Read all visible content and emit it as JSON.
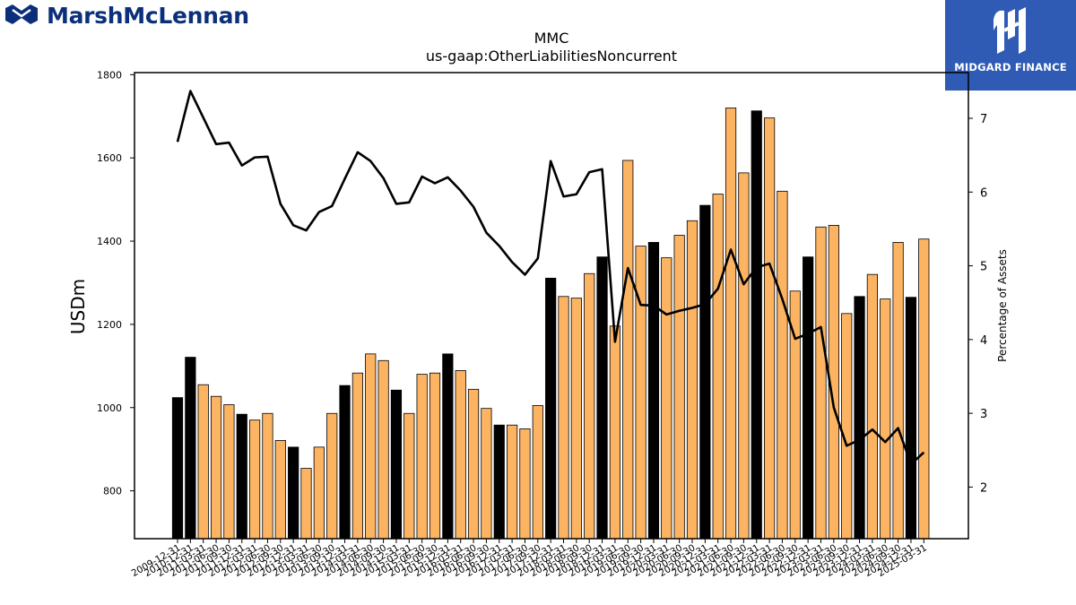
{
  "branding": {
    "left_logo": "MarshMcLennan",
    "right_logo": "MIDGARD FINANCE"
  },
  "chart_data": {
    "type": "bar",
    "title": "MMC",
    "subtitle": "us-gaap:OtherLiabilitiesNoncurrent",
    "ylabel": "USDm",
    "y2label": "Percentage of Assets",
    "ylim": [
      685,
      1805
    ],
    "y2lim": [
      1.3,
      7.62
    ],
    "yticks": [
      800,
      1000,
      1200,
      1400,
      1600,
      1800
    ],
    "y2ticks": [
      2,
      3,
      4,
      5,
      6,
      7
    ],
    "bar_colors": {
      "annual": "#000000",
      "quarterly": "#fdb462"
    },
    "line_color": "#000000",
    "categories": [
      "2009-12-31",
      "2010-12-31",
      "2011-03-31",
      "2011-06-30",
      "2011-09-30",
      "2011-12-31",
      "2012-03-31",
      "2012-06-30",
      "2012-09-30",
      "2012-12-31",
      "2013-03-31",
      "2013-06-30",
      "2013-09-30",
      "2013-12-31",
      "2014-03-31",
      "2014-06-30",
      "2014-09-30",
      "2014-12-31",
      "2015-03-31",
      "2015-06-30",
      "2015-09-30",
      "2015-12-31",
      "2016-03-31",
      "2016-06-30",
      "2016-09-30",
      "2016-12-31",
      "2017-03-31",
      "2017-06-30",
      "2017-09-30",
      "2017-12-31",
      "2018-03-31",
      "2018-06-30",
      "2018-09-30",
      "2018-12-31",
      "2019-03-31",
      "2019-06-30",
      "2019-09-30",
      "2019-12-31",
      "2020-03-31",
      "2020-06-30",
      "2020-09-30",
      "2020-12-31",
      "2021-03-31",
      "2021-06-30",
      "2021-09-30",
      "2021-12-31",
      "2022-03-31",
      "2022-06-30",
      "2022-09-30",
      "2022-12-31",
      "2023-03-31",
      "2023-06-30",
      "2023-09-30",
      "2023-12-31",
      "2024-03-31",
      "2024-06-30",
      "2024-09-30",
      "2024-12-31",
      "2025-03-31"
    ],
    "annual": [
      true,
      true,
      false,
      false,
      false,
      true,
      false,
      false,
      false,
      true,
      false,
      false,
      false,
      true,
      false,
      false,
      false,
      true,
      false,
      false,
      false,
      true,
      false,
      false,
      false,
      true,
      false,
      false,
      false,
      true,
      false,
      false,
      false,
      true,
      false,
      false,
      false,
      true,
      false,
      false,
      false,
      true,
      false,
      false,
      false,
      true,
      false,
      false,
      false,
      true,
      false,
      false,
      false,
      true,
      false,
      false,
      false,
      true,
      false
    ],
    "series": [
      {
        "name": "OtherLiabilitiesNoncurrent",
        "kind": "bar",
        "axis": "left",
        "values": [
          1024,
          1121,
          1055,
          1027,
          1007,
          984,
          970,
          986,
          921,
          905,
          854,
          905,
          986,
          1053,
          1083,
          1129,
          1113,
          1042,
          986,
          1080,
          1083,
          1129,
          1089,
          1044,
          998,
          958,
          958,
          949,
          1005,
          1311,
          1267,
          1263,
          1322,
          1362,
          1196,
          1594,
          1388,
          1397,
          1360,
          1414,
          1449,
          1486,
          1513,
          1720,
          1564,
          1713,
          1696,
          1520,
          1280,
          1362,
          1434,
          1438,
          1226,
          1267,
          1320,
          1261,
          1397,
          1265,
          1405
        ]
      },
      {
        "name": "Percentage of Assets",
        "kind": "line",
        "axis": "right",
        "values": [
          6.68,
          7.37,
          7.01,
          6.65,
          6.67,
          6.36,
          6.47,
          6.48,
          5.84,
          5.55,
          5.48,
          5.73,
          5.81,
          6.18,
          6.54,
          6.42,
          6.19,
          5.84,
          5.86,
          6.21,
          6.12,
          6.2,
          6.02,
          5.8,
          5.45,
          5.27,
          5.05,
          4.88,
          5.1,
          6.42,
          5.94,
          5.97,
          6.27,
          6.31,
          3.97,
          4.97,
          4.47,
          4.46,
          4.34,
          4.39,
          4.43,
          4.48,
          4.69,
          5.22,
          4.75,
          4.98,
          5.03,
          4.55,
          4.01,
          4.08,
          4.17,
          3.08,
          2.56,
          2.64,
          2.78,
          2.61,
          2.8,
          2.31,
          2.47
        ]
      }
    ]
  }
}
